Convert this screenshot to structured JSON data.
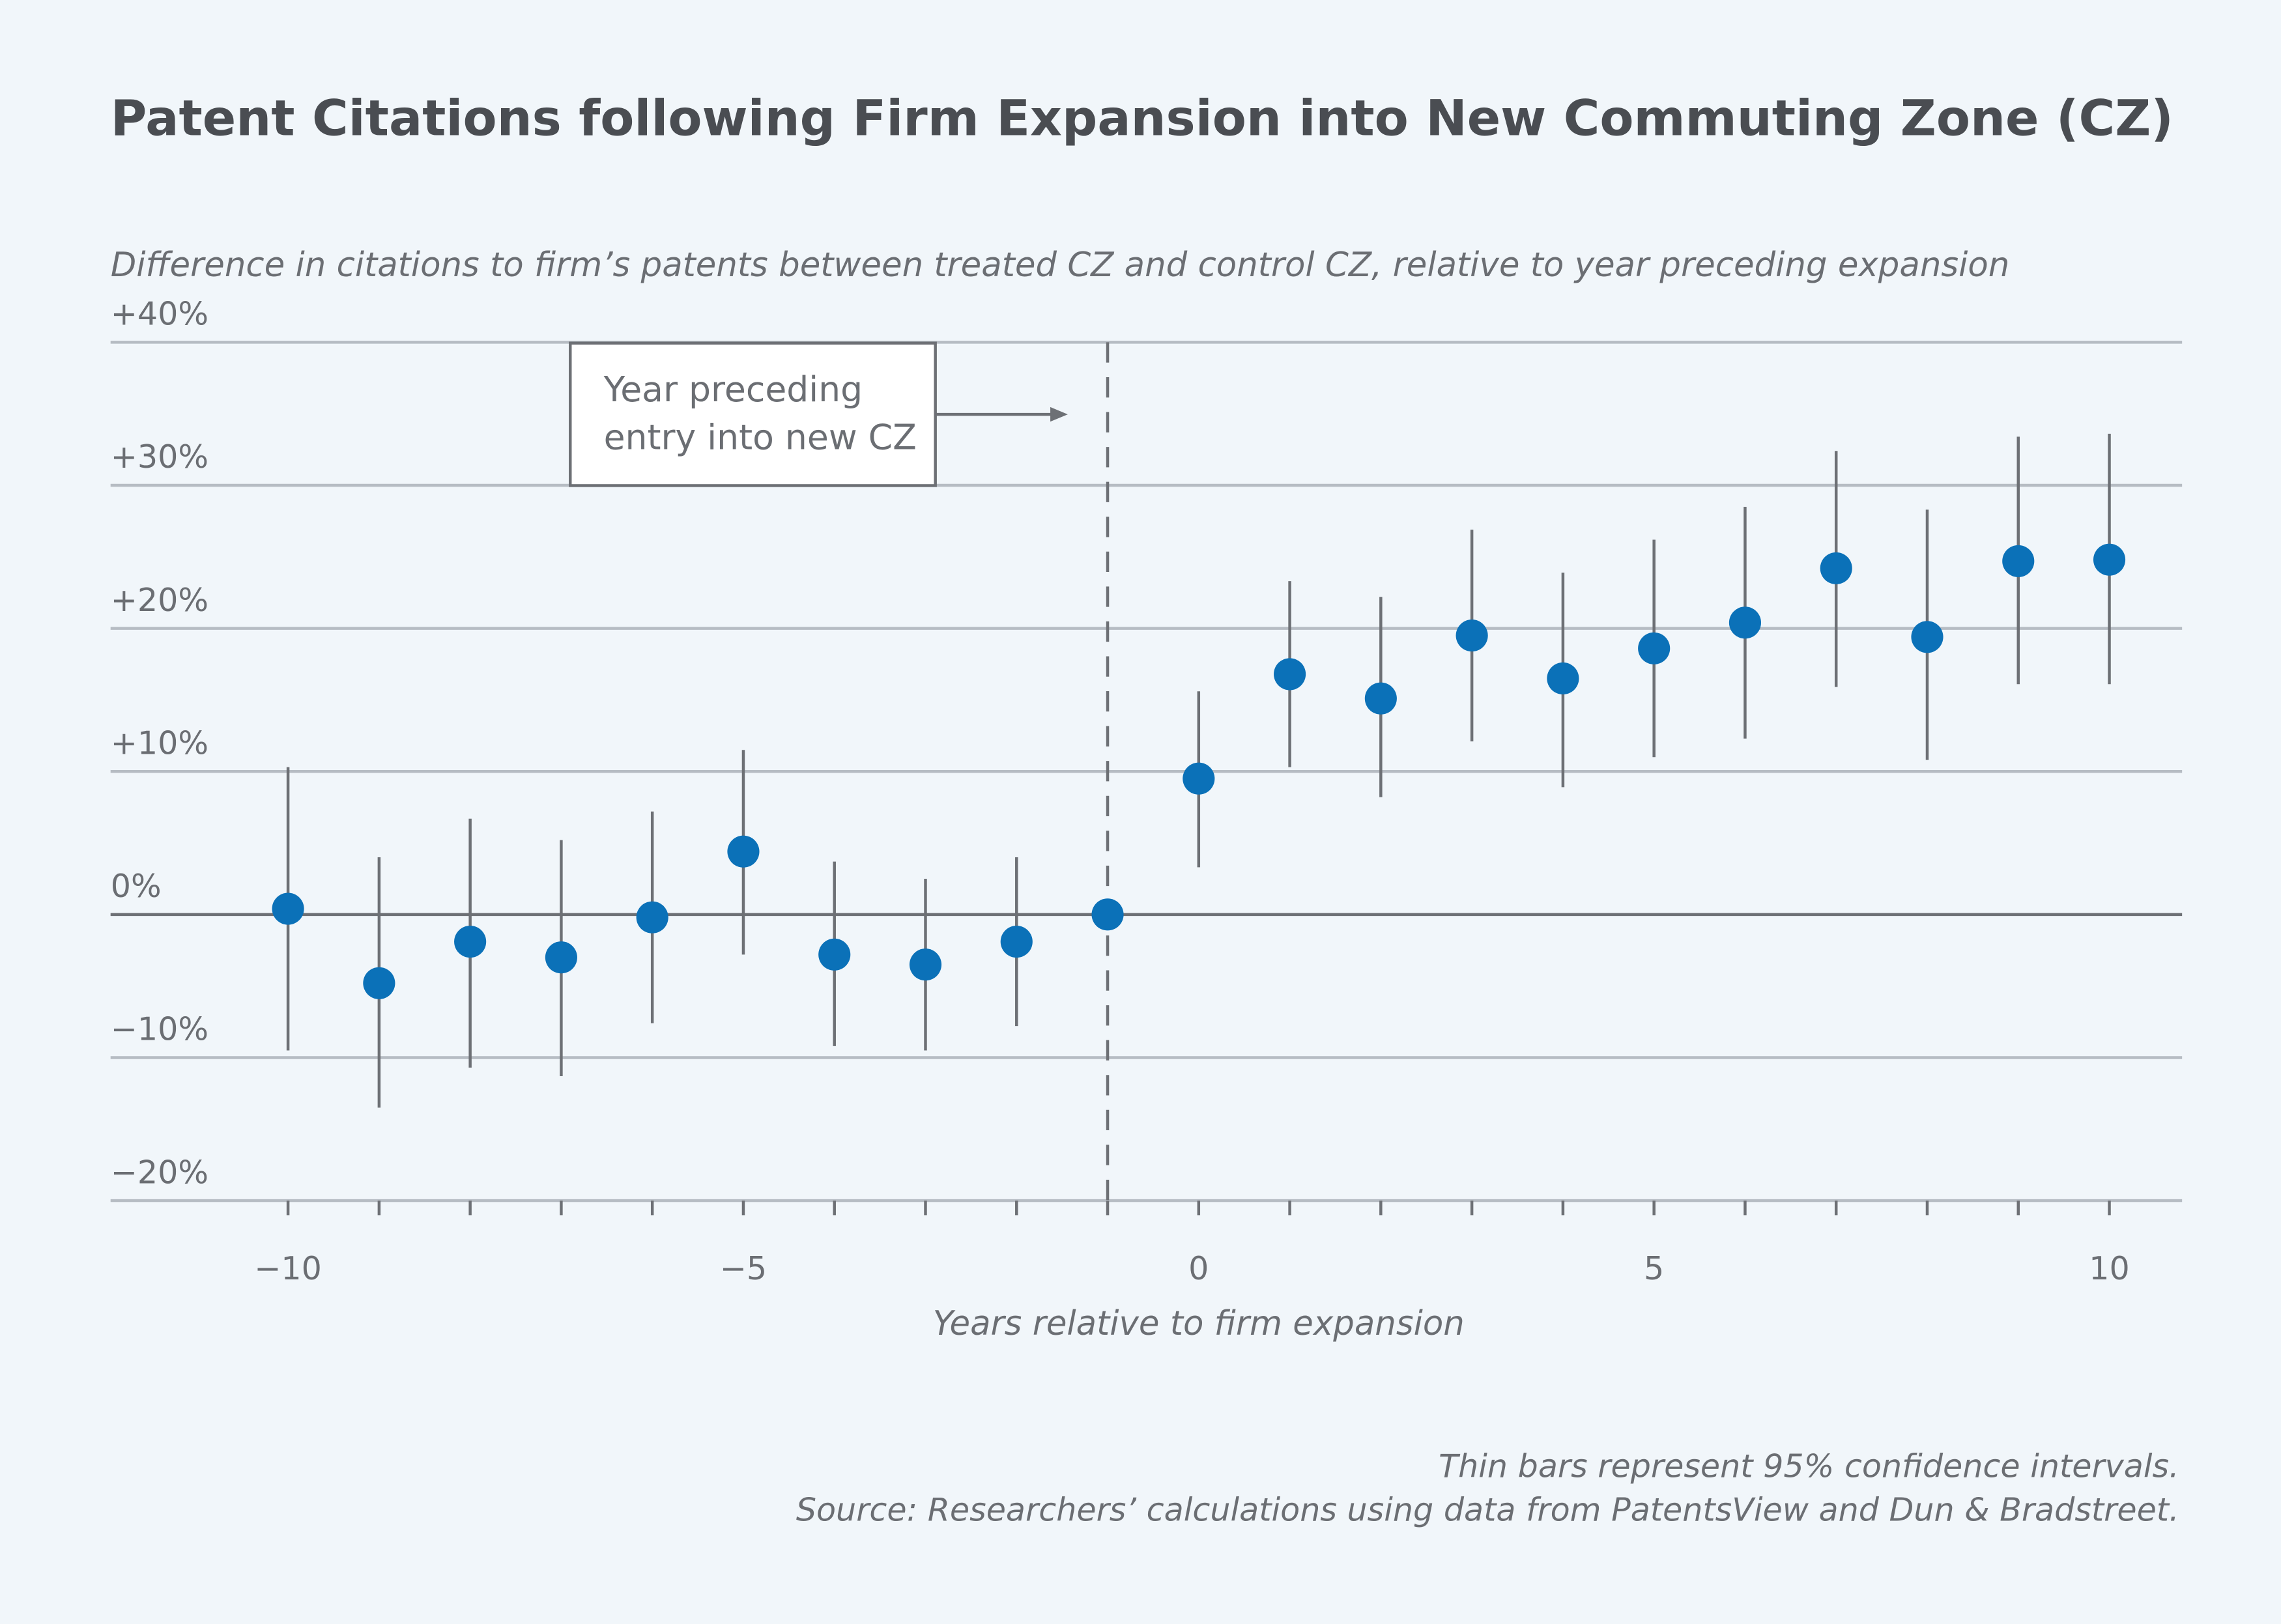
{
  "colors": {
    "background": "#f1f6fa",
    "point": "#0b71b8",
    "ci": "#6d7075",
    "grid": "#b6bcc3",
    "zero": "#6d7075"
  },
  "chart_data": {
    "type": "scatter",
    "title": "Patent Citations following Firm Expansion into New Commuting Zone (CZ)",
    "subtitle": "Difference in citations to firm’s patents between treated CZ and control CZ, relative to year preceding expansion",
    "xlabel": "Years relative to firm expansion",
    "ylabel": "",
    "xlim": [
      -12,
      11.2
    ],
    "ylim": [
      -20,
      40
    ],
    "grid": true,
    "y_ticks": [
      {
        "v": 40,
        "label": "+40%"
      },
      {
        "v": 30,
        "label": "+30%"
      },
      {
        "v": 20,
        "label": "+20%"
      },
      {
        "v": 10,
        "label": "+10%"
      },
      {
        "v": 0,
        "label": "0%"
      },
      {
        "v": -10,
        "label": "−10%"
      },
      {
        "v": -20,
        "label": "−20%"
      }
    ],
    "x_ticks": [
      {
        "v": -10,
        "label": "−10"
      },
      {
        "v": -5,
        "label": "−5"
      },
      {
        "v": 0,
        "label": "0"
      },
      {
        "v": 5,
        "label": "5"
      },
      {
        "v": 10,
        "label": "10"
      }
    ],
    "reference_line_x": -1,
    "annotation": {
      "lines": [
        "Year preceding",
        "entry into new CZ"
      ]
    },
    "points": [
      {
        "x": -10,
        "y": 0.4,
        "lo": -9.5,
        "hi": 10.3
      },
      {
        "x": -9,
        "y": -4.8,
        "lo": -13.5,
        "hi": 4.0
      },
      {
        "x": -8,
        "y": -1.9,
        "lo": -10.7,
        "hi": 6.7
      },
      {
        "x": -7,
        "y": -3.0,
        "lo": -11.3,
        "hi": 5.2
      },
      {
        "x": -6,
        "y": -0.2,
        "lo": -7.6,
        "hi": 7.2
      },
      {
        "x": -5,
        "y": 4.4,
        "lo": -2.8,
        "hi": 11.5
      },
      {
        "x": -4,
        "y": -2.8,
        "lo": -9.2,
        "hi": 3.7
      },
      {
        "x": -3,
        "y": -3.5,
        "lo": -9.5,
        "hi": 2.5
      },
      {
        "x": -2,
        "y": -1.9,
        "lo": -7.8,
        "hi": 4.0
      },
      {
        "x": -1,
        "y": 0,
        "lo": null,
        "hi": null
      },
      {
        "x": 0,
        "y": 9.5,
        "lo": 3.3,
        "hi": 15.6
      },
      {
        "x": 1,
        "y": 16.8,
        "lo": 10.3,
        "hi": 23.3
      },
      {
        "x": 2,
        "y": 15.1,
        "lo": 8.2,
        "hi": 22.2
      },
      {
        "x": 3,
        "y": 19.5,
        "lo": 12.1,
        "hi": 26.9
      },
      {
        "x": 4,
        "y": 16.5,
        "lo": 8.9,
        "hi": 23.9
      },
      {
        "x": 5,
        "y": 18.6,
        "lo": 11.0,
        "hi": 26.2
      },
      {
        "x": 6,
        "y": 20.4,
        "lo": 12.3,
        "hi": 28.5
      },
      {
        "x": 7,
        "y": 24.2,
        "lo": 15.9,
        "hi": 32.4
      },
      {
        "x": 8,
        "y": 19.4,
        "lo": 10.8,
        "hi": 28.3
      },
      {
        "x": 9,
        "y": 24.7,
        "lo": 16.1,
        "hi": 33.4
      },
      {
        "x": 10,
        "y": 24.8,
        "lo": 16.1,
        "hi": 33.6
      }
    ],
    "notes": [
      "Thin bars represent 95% confidence intervals.",
      "Source: Researchers’ calculations using data from PatentsView and Dun & Bradstreet."
    ]
  }
}
